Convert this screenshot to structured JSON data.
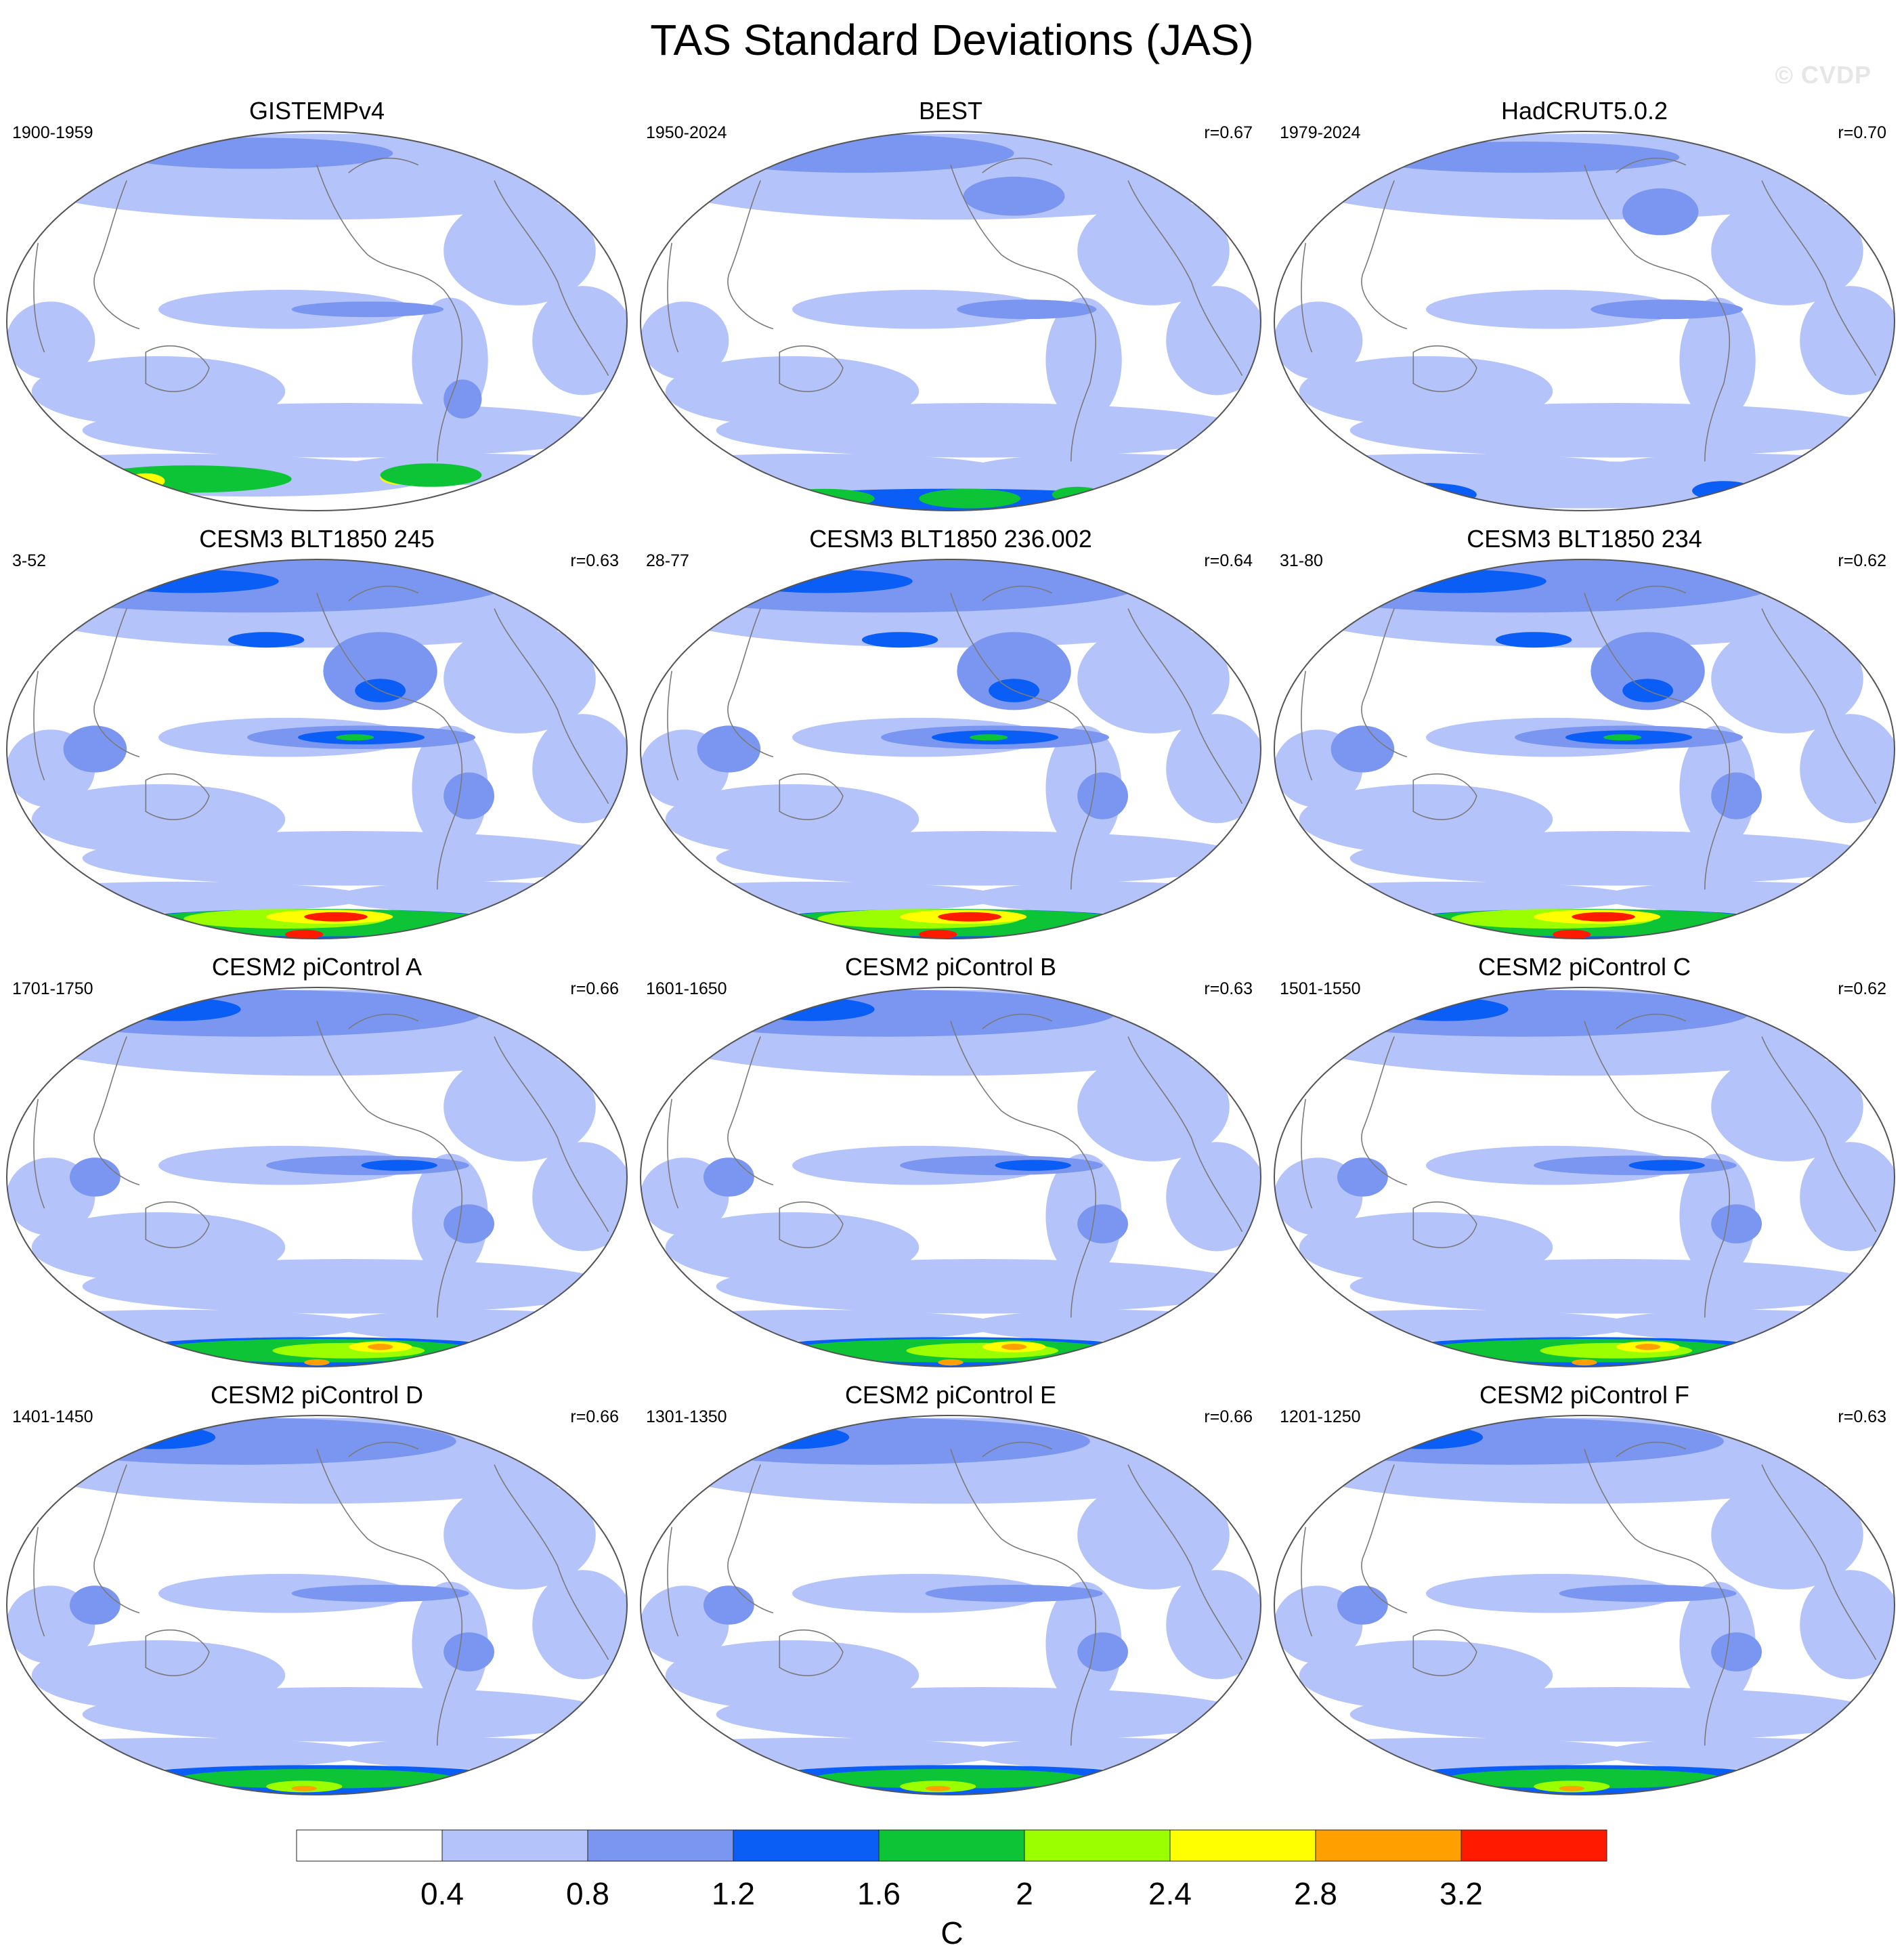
{
  "figure": {
    "title": "TAS Standard Deviations (JAS)",
    "watermark": "© CVDP"
  },
  "panels": [
    {
      "title": "GISTEMPv4",
      "period": "1900-1959",
      "r": "",
      "pattern": "obs_gistemp"
    },
    {
      "title": "BEST",
      "period": "1950-2024",
      "r": "r=0.67",
      "pattern": "obs_best"
    },
    {
      "title": "HadCRUT5.0.2",
      "period": "1979-2024",
      "r": "r=0.70",
      "pattern": "obs_hadcrut"
    },
    {
      "title": "CESM3 BLT1850 245",
      "period": "3-52",
      "r": "r=0.63",
      "pattern": "model_strong"
    },
    {
      "title": "CESM3 BLT1850 236.002",
      "period": "28-77",
      "r": "r=0.64",
      "pattern": "model_strong"
    },
    {
      "title": "CESM3 BLT1850 234",
      "period": "31-80",
      "r": "r=0.62",
      "pattern": "model_strong"
    },
    {
      "title": "CESM2 piControl A",
      "period": "1701-1750",
      "r": "r=0.66",
      "pattern": "model_medium"
    },
    {
      "title": "CESM2 piControl B",
      "period": "1601-1650",
      "r": "r=0.63",
      "pattern": "model_medium"
    },
    {
      "title": "CESM2 piControl C",
      "period": "1501-1550",
      "r": "r=0.62",
      "pattern": "model_medium"
    },
    {
      "title": "CESM2 piControl D",
      "period": "1401-1450",
      "r": "r=0.66",
      "pattern": "model_weak"
    },
    {
      "title": "CESM2 piControl E",
      "period": "1301-1350",
      "r": "r=0.66",
      "pattern": "model_weak"
    },
    {
      "title": "CESM2 piControl F",
      "period": "1201-1250",
      "r": "r=0.63",
      "pattern": "model_weak"
    }
  ],
  "colorbar": {
    "levels": [
      "0.4",
      "0.8",
      "1.2",
      "1.6",
      "2",
      "2.4",
      "2.8",
      "3.2"
    ],
    "colors": [
      "#ffffff",
      "#b4c3fa",
      "#7b96f0",
      "#0a5ef5",
      "#0cc436",
      "#9bff00",
      "#ffff00",
      "#ffa000",
      "#ff1a00"
    ],
    "units": "C"
  },
  "colors": {
    "coastline": "#7a7a7a",
    "map_outline": "#555555"
  }
}
